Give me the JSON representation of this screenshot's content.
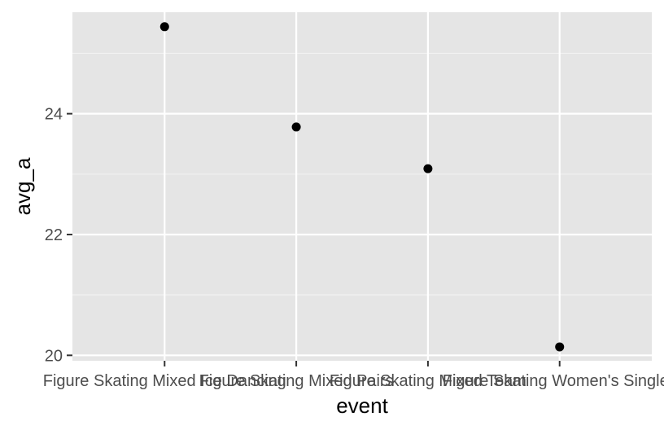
{
  "chart_data": {
    "type": "scatter",
    "xlabel": "event",
    "ylabel": "avg_a",
    "categories": [
      "Figure Skating Mixed Ice Dancing",
      "Figure Skating Mixed Pairs",
      "Figure Skating Mixed Team",
      "Figure Skating Women's Singles"
    ],
    "values": [
      25.44,
      23.78,
      23.09,
      20.14
    ],
    "ylim": [
      19.91,
      25.68
    ],
    "y_ticks": [
      20,
      22,
      24
    ],
    "y_tick_labels": [
      "20",
      "22",
      "24"
    ],
    "grid": true,
    "legend": "none",
    "colors": {
      "panel_background": "#e5e5e5",
      "grid_major": "#ffffff",
      "grid_minor": "#f2f2f2",
      "point": "#000000",
      "tick_text": "#4d4d4d"
    }
  }
}
